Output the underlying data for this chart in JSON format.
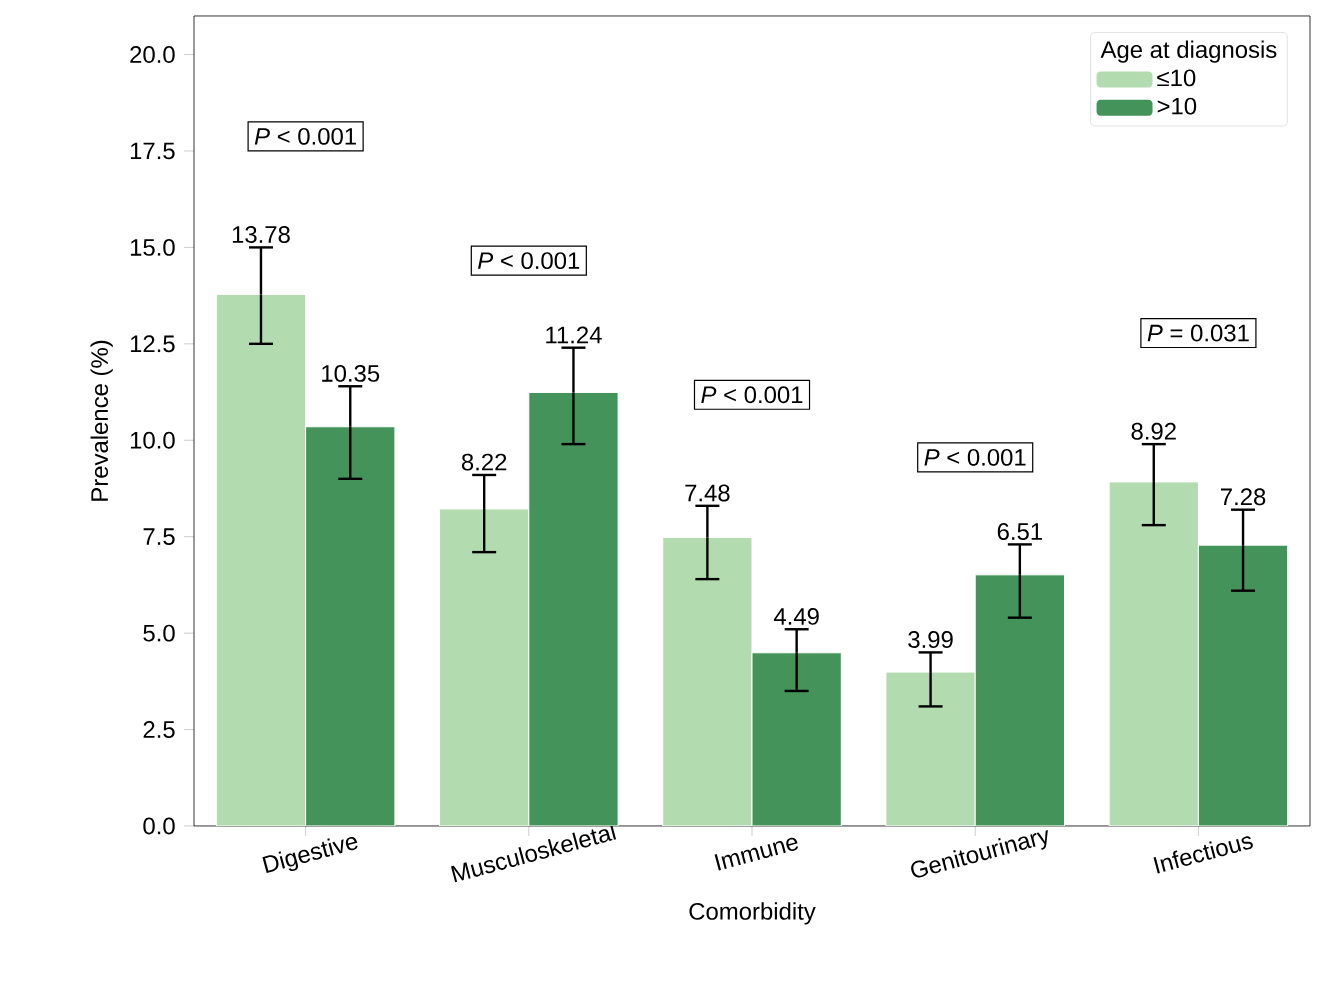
{
  "chart_data": {
    "type": "bar",
    "xlabel": "Comorbidity",
    "ylabel": "Prevalence (%)",
    "legend_title": "Age at diagnosis",
    "categories": [
      "Digestive",
      "Musculoskeletal",
      "Immune",
      "Genitourinary",
      "Infectious"
    ],
    "series": [
      {
        "name": "≤10",
        "color": "#b3dbb0",
        "values": [
          13.78,
          8.22,
          7.48,
          3.99,
          8.92
        ],
        "errors": [
          [
            12.5,
            15.0
          ],
          [
            7.1,
            9.1
          ],
          [
            6.4,
            8.3
          ],
          [
            3.1,
            4.5
          ],
          [
            7.8,
            9.9
          ]
        ]
      },
      {
        "name": ">10",
        "color": "#43935a",
        "values": [
          10.35,
          11.24,
          4.49,
          6.51,
          7.28
        ],
        "errors": [
          [
            9.0,
            11.4
          ],
          [
            9.9,
            12.4
          ],
          [
            3.5,
            5.1
          ],
          [
            5.4,
            7.3
          ],
          [
            6.1,
            8.2
          ]
        ]
      }
    ],
    "ylim": [
      0,
      21
    ],
    "yticks": [
      {
        "value": 0,
        "label": "0.0"
      },
      {
        "value": 2.5,
        "label": "2.5"
      },
      {
        "value": 5,
        "label": "5.0"
      },
      {
        "value": 7.5,
        "label": "7.5"
      },
      {
        "value": 10,
        "label": "10.0"
      },
      {
        "value": 12.5,
        "label": "12.5"
      },
      {
        "value": 15,
        "label": "15.0"
      },
      {
        "value": 17.5,
        "label": "17.5"
      },
      {
        "value": 20,
        "label": "20.0"
      }
    ],
    "data_labels": true,
    "legend": "top right",
    "grid": false,
    "annotations": [
      "*P* < 0.001",
      "*P* < 0.001",
      "*P* < 0.001",
      "*P* < 0.001",
      "*P* = 0.031"
    ]
  }
}
